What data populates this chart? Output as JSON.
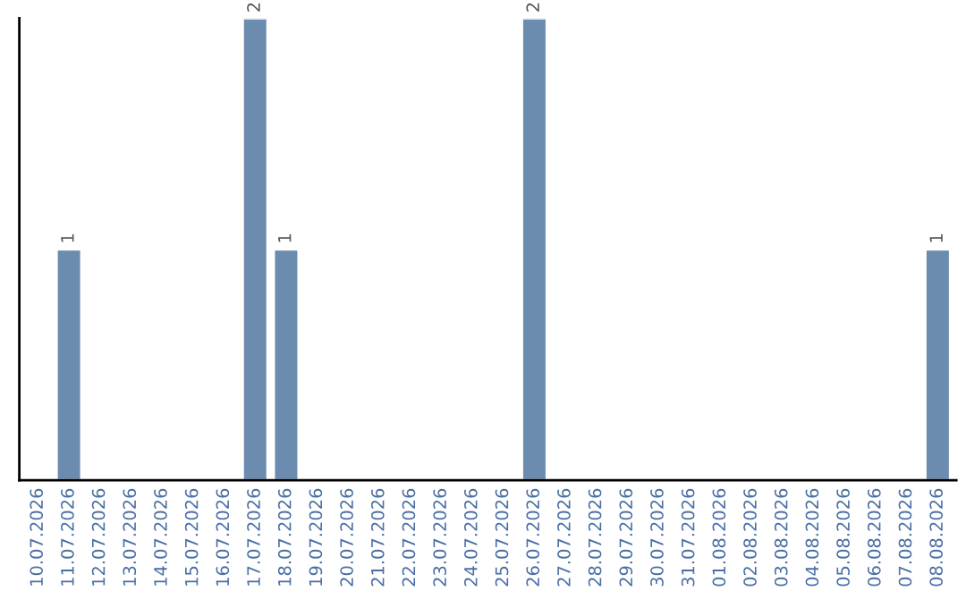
{
  "chart_data": {
    "type": "bar",
    "categories": [
      "10.07.2026",
      "11.07.2026",
      "12.07.2026",
      "13.07.2026",
      "14.07.2026",
      "15.07.2026",
      "16.07.2026",
      "17.07.2026",
      "18.07.2026",
      "19.07.2026",
      "20.07.2026",
      "21.07.2026",
      "22.07.2026",
      "23.07.2026",
      "24.07.2026",
      "25.07.2026",
      "26.07.2026",
      "27.07.2026",
      "28.07.2026",
      "29.07.2026",
      "30.07.2026",
      "31.07.2026",
      "01.08.2026",
      "02.08.2026",
      "03.08.2026",
      "04.08.2026",
      "05.08.2026",
      "06.08.2026",
      "07.08.2026",
      "08.08.2026"
    ],
    "values": [
      0,
      1,
      0,
      0,
      0,
      0,
      0,
      2,
      1,
      0,
      0,
      0,
      0,
      0,
      0,
      0,
      2,
      0,
      0,
      0,
      0,
      0,
      0,
      0,
      0,
      0,
      0,
      0,
      0,
      1
    ],
    "color": "#6b8cae",
    "value_labels": [
      null,
      "1",
      null,
      null,
      null,
      null,
      null,
      "2",
      "1",
      null,
      null,
      null,
      null,
      null,
      null,
      null,
      "2",
      null,
      null,
      null,
      null,
      null,
      null,
      null,
      null,
      null,
      null,
      null,
      null,
      "1"
    ],
    "tick_labels": "x",
    "grid": false
  }
}
